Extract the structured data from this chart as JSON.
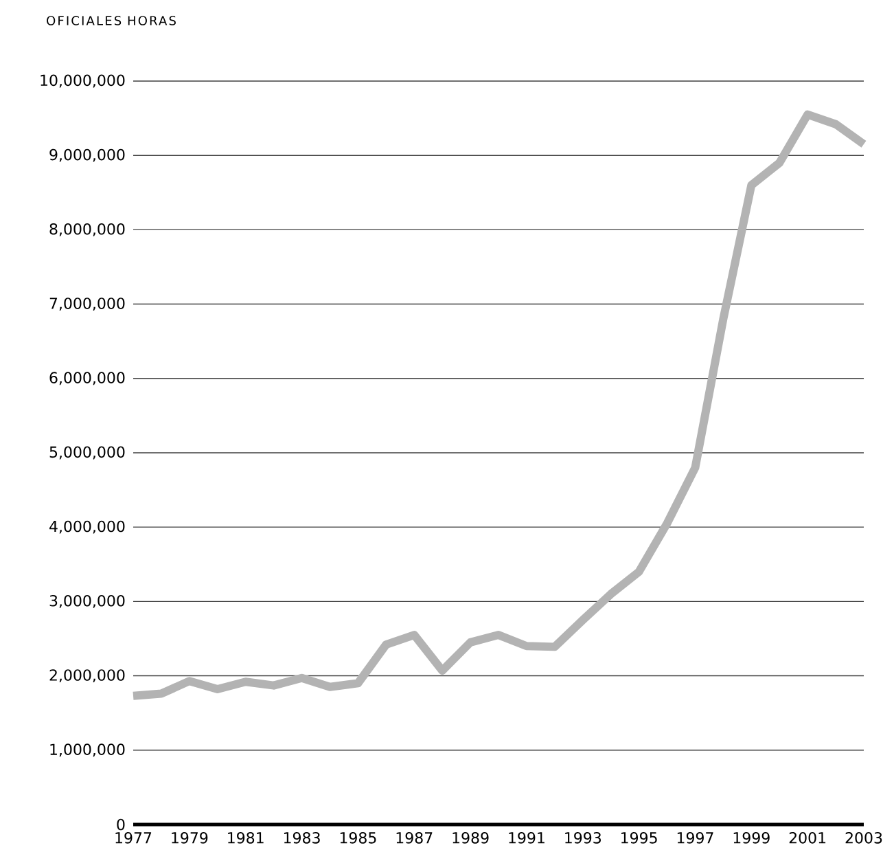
{
  "chart_data": {
    "type": "line",
    "ylabel": "OFICIALES HORAS",
    "x": [
      1977,
      1978,
      1979,
      1980,
      1981,
      1982,
      1983,
      1984,
      1985,
      1986,
      1987,
      1988,
      1989,
      1990,
      1991,
      1992,
      1993,
      1994,
      1995,
      1996,
      1997,
      1998,
      1999,
      2000,
      2001,
      2002,
      2003
    ],
    "series": [
      {
        "color": "#b3b3b3",
        "values": [
          1730000,
          1760000,
          1930000,
          1820000,
          1920000,
          1870000,
          1970000,
          1850000,
          1900000,
          2420000,
          2550000,
          2070000,
          2450000,
          2550000,
          2400000,
          2390000,
          2750000,
          3100000,
          3400000,
          4050000,
          4800000,
          6800000,
          8600000,
          8900000,
          9550000,
          9420000,
          9150000
        ]
      }
    ],
    "xlim": [
      1977,
      2003
    ],
    "xticks": [
      1977,
      1979,
      1981,
      1983,
      1985,
      1987,
      1989,
      1991,
      1993,
      1995,
      1997,
      1999,
      2001,
      2003
    ],
    "ylim": [
      0,
      10000000
    ],
    "yticks": [
      {
        "value": 0,
        "label": "0"
      },
      {
        "value": 1000000,
        "label": "1,000,000"
      },
      {
        "value": 2000000,
        "label": "2,000,000"
      },
      {
        "value": 3000000,
        "label": "3,000,000"
      },
      {
        "value": 4000000,
        "label": "4,000,000"
      },
      {
        "value": 5000000,
        "label": "5,000,000"
      },
      {
        "value": 6000000,
        "label": "6,000,000"
      },
      {
        "value": 7000000,
        "label": "7,000,000"
      },
      {
        "value": 8000000,
        "label": "8,000,000"
      },
      {
        "value": 9000000,
        "label": "9,000,000"
      },
      {
        "value": 10000000,
        "label": "10,000,000"
      }
    ],
    "grid": "y",
    "marker": "none",
    "line_style": "solid"
  }
}
